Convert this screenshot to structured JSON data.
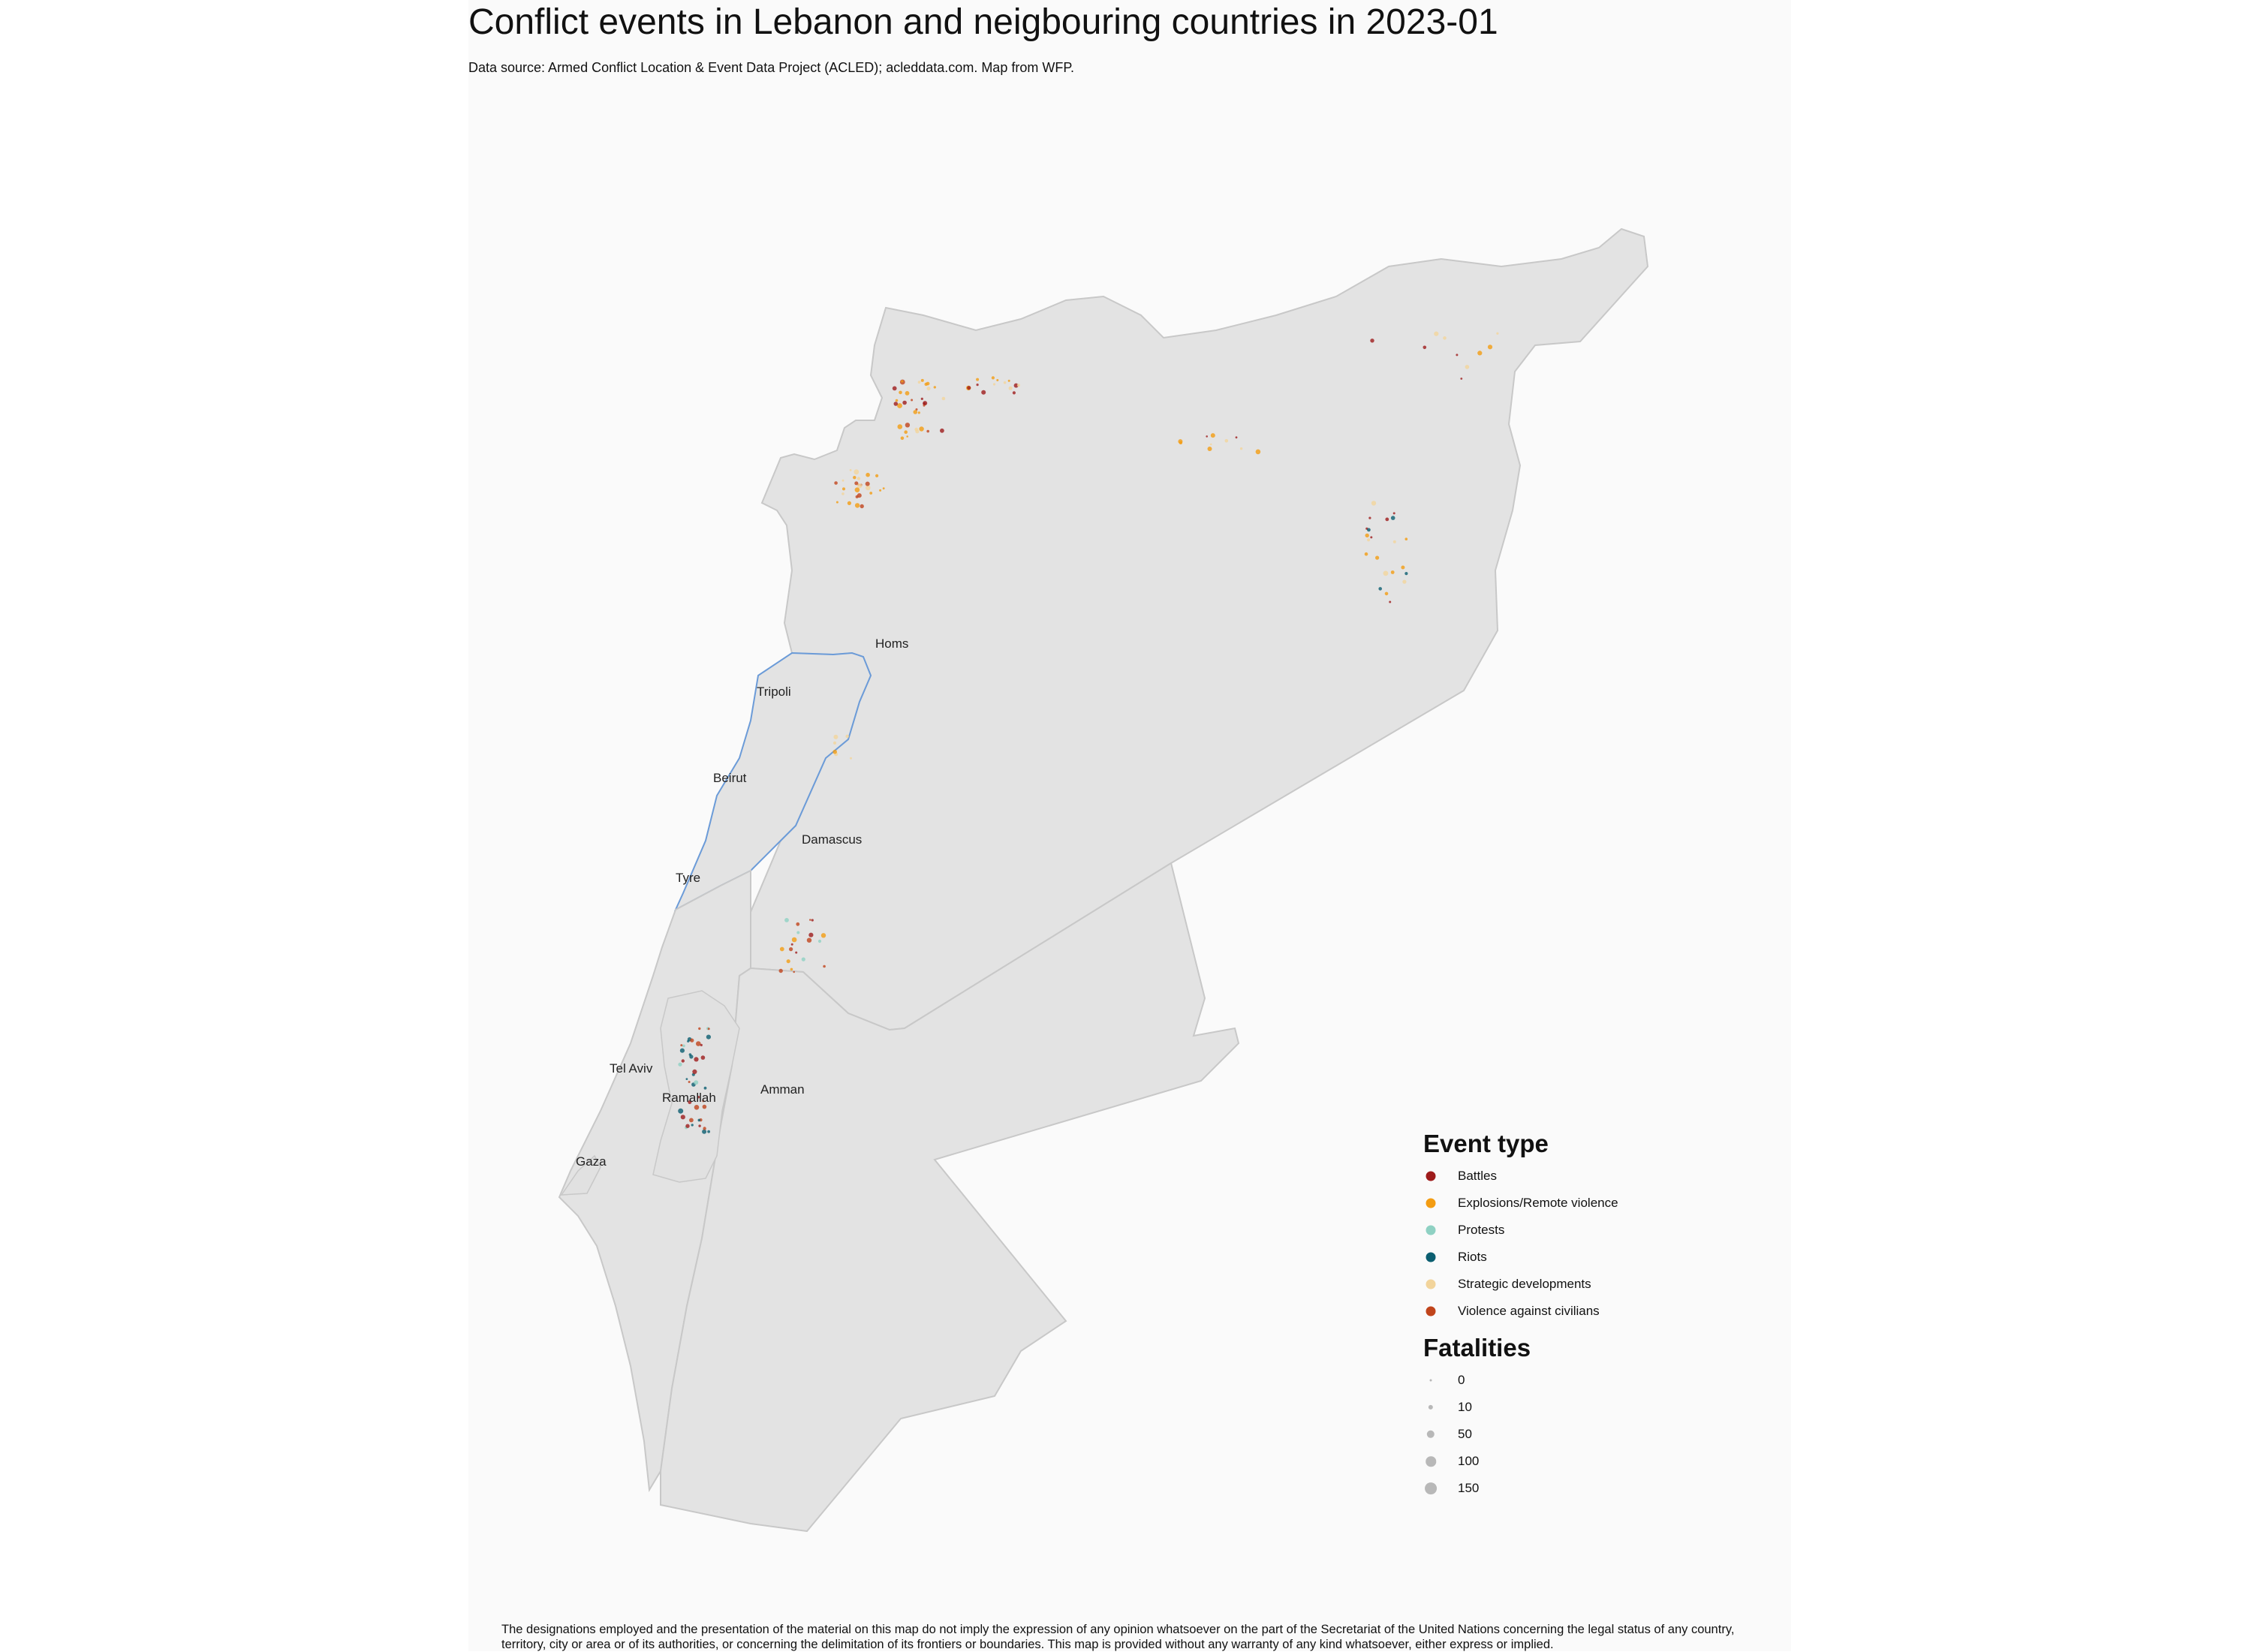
{
  "title": "Conflict events in Lebanon and neigbouring countries in 2023-01",
  "subtitle": "Data source: Armed Conflict Location & Event Data Project (ACLED); acleddata.com. Map from WFP.",
  "caption": "The designations employed and the presentation of the material on this map do not imply the expression of any opinion whatsoever on the part of the Secretariat of the United Nations concerning the legal status of any country, territory, city or area or of its authorities, or concerning the delimitation of its frontiers or boundaries. This map is provided without any warranty of any kind whatsoever, either express or implied.",
  "cities": [
    "Homs",
    "Tripoli",
    "Beirut",
    "Damascus",
    "Tyre",
    "Tel Aviv",
    "Ramallah",
    "Amman",
    "Gaza"
  ],
  "legend": {
    "event_type": {
      "title": "Event type",
      "items": [
        {
          "label": "Battles",
          "color": "#9e1b1b"
        },
        {
          "label": "Explosions/Remote violence",
          "color": "#f39c12"
        },
        {
          "label": "Protests",
          "color": "#8fd1c3"
        },
        {
          "label": "Riots",
          "color": "#0b5e70"
        },
        {
          "label": "Strategic developments",
          "color": "#f2d49b"
        },
        {
          "label": "Violence against civilians",
          "color": "#c0441b"
        }
      ]
    },
    "fatalities": {
      "title": "Fatalities",
      "items": [
        {
          "label": "0",
          "value": 0
        },
        {
          "label": "10",
          "value": 10
        },
        {
          "label": "50",
          "value": 50
        },
        {
          "label": "100",
          "value": 100
        },
        {
          "label": "150",
          "value": 150
        }
      ],
      "key_color": "#b8b8b8"
    }
  },
  "colors": {
    "land": "#e3e3e3",
    "land_border": "#c8c8c8",
    "lebanon_border": "#6b9bd8",
    "background": "#fafafa"
  }
}
